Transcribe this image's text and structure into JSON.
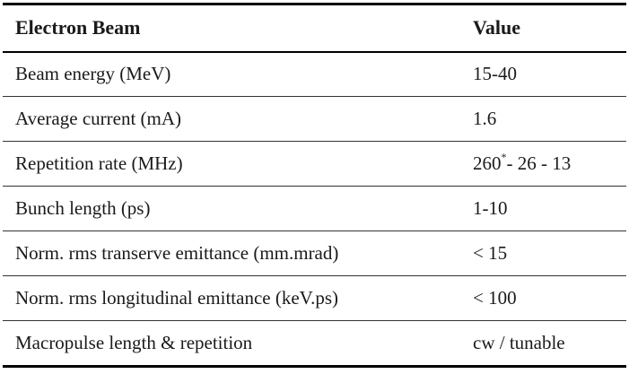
{
  "table": {
    "headers": [
      "Electron Beam",
      "Value"
    ],
    "rows": [
      {
        "parameter": "Beam energy (MeV)",
        "value": "15-40"
      },
      {
        "parameter": "Average current (mA)",
        "value": "1.6"
      },
      {
        "parameter": "Repetition rate (MHz)",
        "value_main": "260",
        "value_mark": "*",
        "value_rest": "- 26 - 13"
      },
      {
        "parameter": "Bunch length (ps)",
        "value": "1-10"
      },
      {
        "parameter": "Norm. rms transerve emittance (mm.mrad)",
        "value": "< 15"
      },
      {
        "parameter": "Norm. rms longitudinal emittance (keV.ps)",
        "value": "< 100"
      },
      {
        "parameter": "Macropulse length & repetition",
        "value": "cw / tunable"
      }
    ]
  }
}
